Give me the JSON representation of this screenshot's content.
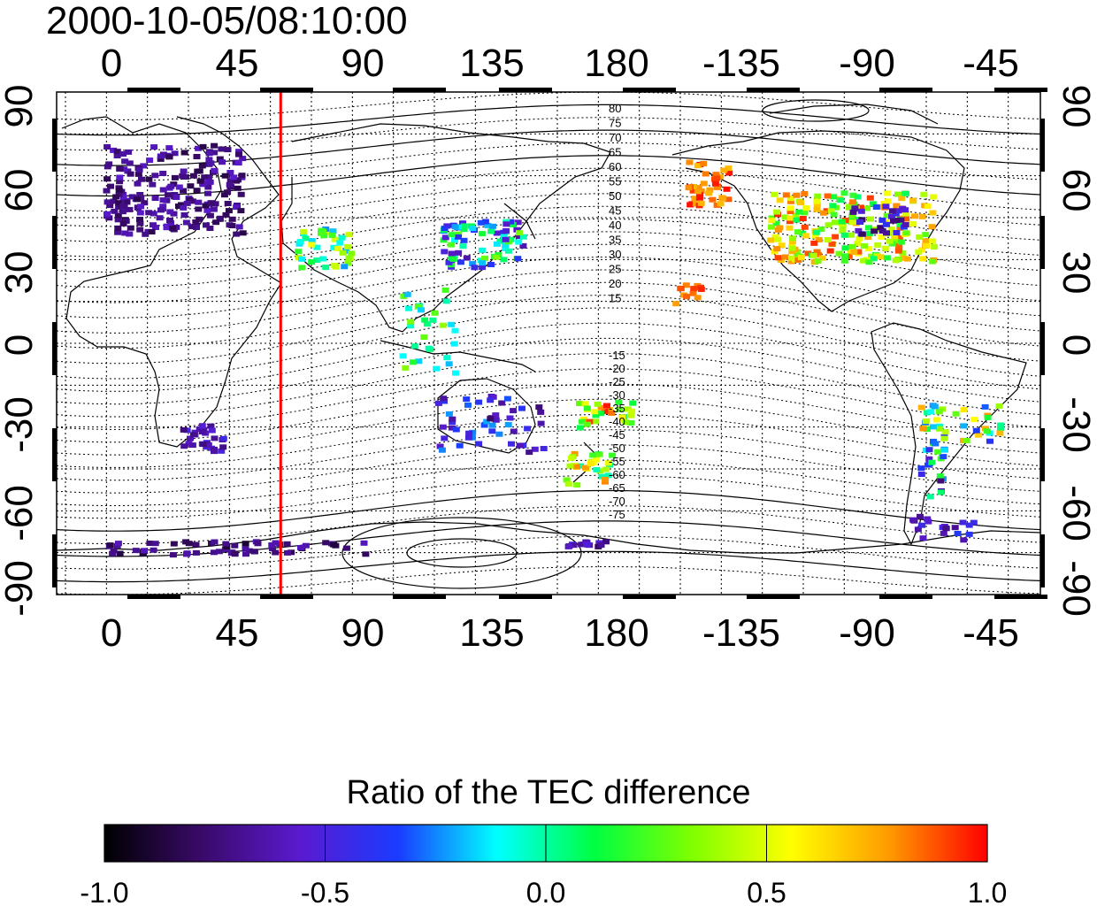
{
  "title": "2000-10-05/08:10:00",
  "map": {
    "x_ticks": [
      "0",
      "45",
      "90",
      "135",
      "180",
      "-135",
      "-90",
      "-45"
    ],
    "y_ticks": [
      "90",
      "60",
      "30",
      "0",
      "-30",
      "-60",
      "-90"
    ],
    "contour_labels_north": [
      "80",
      "75",
      "70",
      "65",
      "60",
      "55",
      "50",
      "45",
      "40",
      "35",
      "30",
      "25",
      "20",
      "15"
    ],
    "contour_labels_south": [
      "-15",
      "-20",
      "-25",
      "-30",
      "-35",
      "-40",
      "-45",
      "-50",
      "-55",
      "-60",
      "-65",
      "-70",
      "-75"
    ],
    "marker_longitude": 57,
    "marker_color": "#ff0000"
  },
  "colorbar": {
    "title": "Ratio of the TEC difference",
    "ticks": [
      "-1.0",
      "-0.5",
      "0.0",
      "0.5",
      "1.0"
    ],
    "range": [
      -1.0,
      1.0
    ],
    "colormap": [
      "#000000",
      "#3a0a6a",
      "#5a1ad0",
      "#1a3cff",
      "#00ffff",
      "#00ff40",
      "#80ff00",
      "#ffff00",
      "#ff9a00",
      "#ff0000"
    ]
  }
}
